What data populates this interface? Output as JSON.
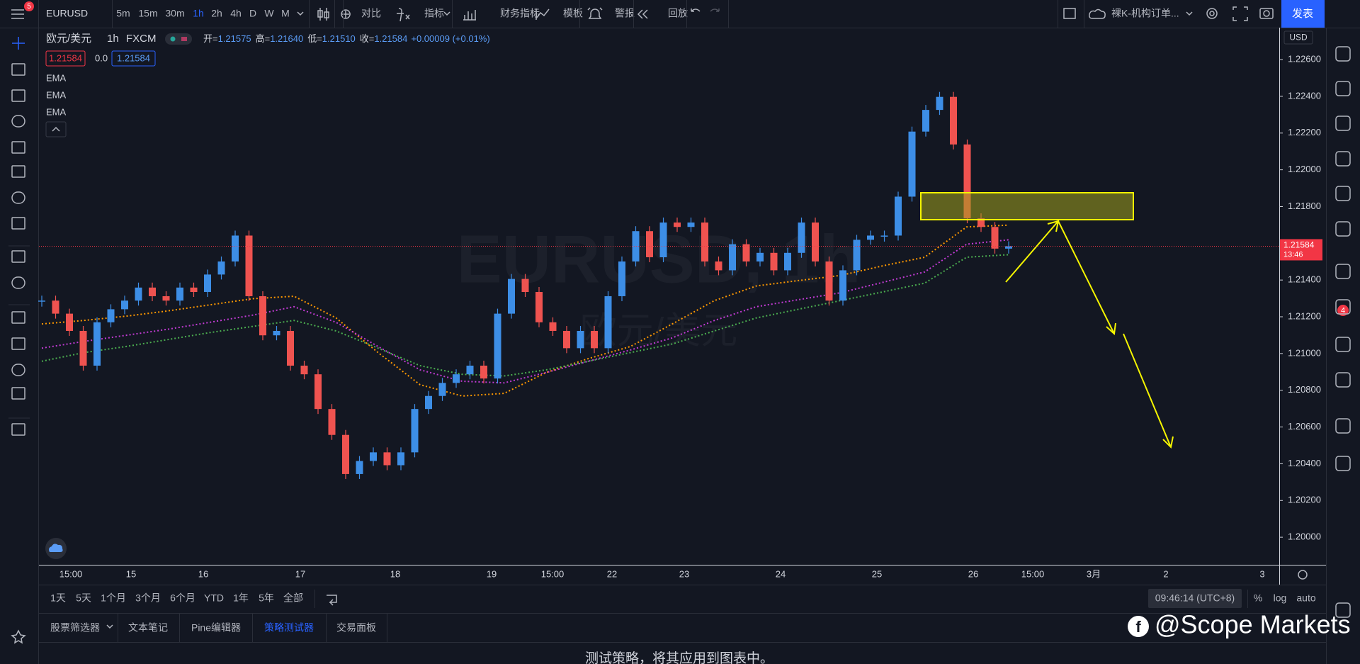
{
  "toolbar": {
    "symbol": "EURUSD",
    "menu_badge": "5",
    "intervals": [
      "5m",
      "15m",
      "30m",
      "1h",
      "2h",
      "4h",
      "D",
      "W",
      "M"
    ],
    "active_interval": 3,
    "buttons": [
      "对比",
      "指标",
      "财务指标",
      "模板",
      "警报",
      "回放"
    ],
    "layout_name": "裸K-机构订单...",
    "publish": "发表"
  },
  "legend": {
    "symbol": "欧元/美元",
    "interval": "1h",
    "exchange": "FXCM",
    "ohlc": [
      {
        "label": "开=",
        "value": "1.21575"
      },
      {
        "label": "高=",
        "value": "1.21640"
      },
      {
        "label": "低=",
        "value": "1.21510"
      },
      {
        "label": "收=",
        "value": "1.21584"
      }
    ],
    "change": "+0.00009 (+0.01%)",
    "bid": "1.21584",
    "spread": "0.0",
    "ask": "1.21584",
    "indicators": [
      "EMA",
      "EMA",
      "EMA"
    ]
  },
  "watermark": {
    "symbol": "EURUSD, 1h",
    "name": "欧元/美元"
  },
  "chart_data": {
    "type": "candlestick",
    "currency": "USD",
    "close": [
      1.21288,
      1.21217,
      1.21123,
      1.20934,
      1.2117,
      1.21241,
      1.21288,
      1.21359,
      1.21312,
      1.21288,
      1.21359,
      1.21335,
      1.2143,
      1.21501,
      1.21642,
      1.21312,
      1.21099,
      1.21123,
      1.20934,
      1.20887,
      1.20698,
      1.20557,
      1.20344,
      1.20415,
      1.20462,
      1.20392,
      1.20462,
      1.20698,
      1.20769,
      1.2084,
      1.20887,
      1.20934,
      1.20864,
      1.21217,
      1.21406,
      1.21335,
      1.2117,
      1.21123,
      1.21029,
      1.21123,
      1.21029,
      1.21312,
      1.21501,
      1.21666,
      1.21524,
      1.21713,
      1.21689,
      1.21713,
      1.21501,
      1.21453,
      1.21595,
      1.21501,
      1.21548,
      1.21453,
      1.21548,
      1.21713,
      1.21501,
      1.21288,
      1.21453,
      1.21619,
      1.21642,
      1.21642,
      1.21854,
      1.22208,
      1.22326,
      1.22397,
      1.22138,
      1.21736,
      1.21689,
      1.21571,
      1.21584
    ],
    "up_color": "#3d8ee6",
    "down_color": "#ef5350",
    "ema": [
      {
        "color": "#ff9800",
        "values": [
          1.21161,
          1.2118,
          1.21203,
          1.21232,
          1.21265,
          1.21298,
          1.21312,
          1.21194,
          1.21005,
          1.2083,
          1.20769,
          1.20783,
          1.20897,
          1.20972,
          1.21038,
          1.21161,
          1.21288,
          1.21368,
          1.21397,
          1.21425,
          1.21477,
          1.21524,
          1.21689,
          1.21699
        ]
      },
      {
        "color": "#c23bd4",
        "values": [
          1.21029,
          1.21066,
          1.21099,
          1.21132,
          1.2117,
          1.21208,
          1.21255,
          1.2117,
          1.21038,
          1.20911,
          1.20849,
          1.2084,
          1.20897,
          1.20958,
          1.21019,
          1.21085,
          1.2118,
          1.21255,
          1.21293,
          1.21331,
          1.21387,
          1.21444,
          1.21595,
          1.21619
        ]
      },
      {
        "color": "#4caf50",
        "values": [
          1.20958,
          1.21005,
          1.21038,
          1.21076,
          1.21114,
          1.21147,
          1.2118,
          1.21123,
          1.21029,
          1.20934,
          1.20887,
          1.20878,
          1.20911,
          1.20958,
          1.21005,
          1.21052,
          1.21123,
          1.21194,
          1.21241,
          1.21288,
          1.21335,
          1.21383,
          1.21524,
          1.21538
        ]
      }
    ],
    "ylim": [
      1.1985,
      1.2277
    ],
    "yticks": [
      {
        "value": 1.226,
        "label": "1.22600"
      },
      {
        "value": 1.224,
        "label": "1.22400"
      },
      {
        "value": 1.222,
        "label": "1.22200"
      },
      {
        "value": 1.22,
        "label": "1.22000"
      },
      {
        "value": 1.218,
        "label": "1.21800"
      },
      {
        "value": 1.216,
        "label": "1.21600"
      },
      {
        "value": 1.214,
        "label": "1.21400"
      },
      {
        "value": 1.212,
        "label": "1.21200"
      },
      {
        "value": 1.21,
        "label": "1.21000"
      },
      {
        "value": 1.208,
        "label": "1.20800"
      },
      {
        "value": 1.206,
        "label": "1.20600"
      },
      {
        "value": 1.204,
        "label": "1.20400"
      },
      {
        "value": 1.202,
        "label": "1.20200"
      },
      {
        "value": 1.2,
        "label": "1.20000"
      }
    ],
    "last_price": 1.21584,
    "countdown": "13:46",
    "xlabels": [
      "15:00",
      "15",
      "16",
      "17",
      "18",
      "19",
      "15:00",
      "22",
      "23",
      "24",
      "25",
      "26",
      "15:00",
      "3月",
      "2",
      "3"
    ]
  },
  "range_bar": {
    "ranges": [
      "1天",
      "5天",
      "1个月",
      "3个月",
      "6个月",
      "YTD",
      "1年",
      "5年",
      "全部"
    ],
    "clock": "09:46:14 (UTC+8)",
    "options": [
      "%",
      "log",
      "auto"
    ]
  },
  "tabs": {
    "items": [
      "股票筛选器",
      "文本笔记",
      "Pine编辑器",
      "策略测试器",
      "交易面板"
    ],
    "active": 3
  },
  "panel_message": "测试策略，将其应用到图表中。",
  "right_badge": "4",
  "credit": "@Scope Markets"
}
